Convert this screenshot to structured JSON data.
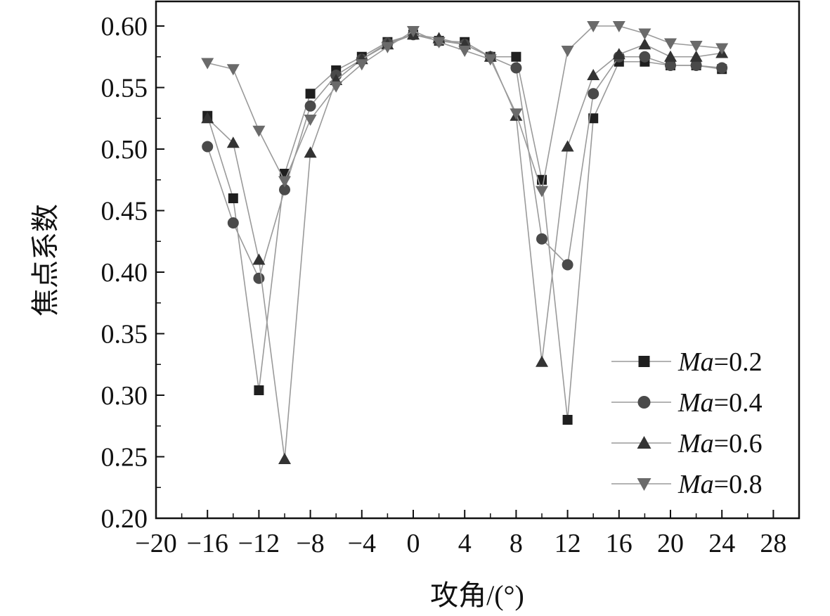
{
  "chart_data": {
    "type": "line",
    "title": "",
    "xlabel": "攻角/(°)",
    "ylabel": "焦点系数",
    "xlim": [
      -20,
      30
    ],
    "ylim": [
      0.2,
      0.62
    ],
    "xticks": [
      -20,
      -16,
      -12,
      -8,
      -4,
      0,
      4,
      8,
      12,
      16,
      20,
      24,
      28
    ],
    "xtick_labels": [
      "−20",
      "−16",
      "−12",
      "−8",
      "−4",
      "0",
      "4",
      "8",
      "12",
      "16",
      "20",
      "24",
      "28"
    ],
    "yticks": [
      0.2,
      0.25,
      0.3,
      0.35,
      0.4,
      0.45,
      0.5,
      0.55,
      0.6
    ],
    "ytick_labels": [
      "0.20",
      "0.25",
      "0.30",
      "0.35",
      "0.40",
      "0.45",
      "0.50",
      "0.55",
      "0.60"
    ],
    "grid": false,
    "legend_position": "bottom-right",
    "x": [
      -16,
      -14,
      -12,
      -10,
      -8,
      -6,
      -4,
      -2,
      0,
      2,
      4,
      6,
      8,
      10,
      12,
      14,
      16,
      18,
      20,
      22,
      24
    ],
    "series": [
      {
        "name": "Ma=0.2",
        "marker": "square",
        "color": "#1f1f1f",
        "values": [
          0.527,
          0.46,
          0.304,
          0.48,
          0.545,
          0.564,
          0.575,
          0.587,
          0.593,
          0.588,
          0.587,
          0.575,
          0.575,
          0.475,
          0.28,
          0.525,
          0.571,
          0.571,
          0.568,
          0.568,
          0.565
        ]
      },
      {
        "name": "Ma=0.4",
        "marker": "circle",
        "color": "#4a4a4a",
        "values": [
          0.502,
          0.44,
          0.395,
          0.467,
          0.535,
          0.56,
          0.573,
          0.586,
          0.593,
          0.588,
          0.585,
          0.575,
          0.566,
          0.427,
          0.406,
          0.545,
          0.575,
          0.575,
          0.568,
          0.568,
          0.566
        ]
      },
      {
        "name": "Ma=0.6",
        "marker": "triangle-up",
        "color": "#333333",
        "values": [
          0.525,
          0.505,
          0.41,
          0.248,
          0.497,
          0.556,
          0.573,
          0.585,
          0.593,
          0.59,
          0.585,
          0.575,
          0.527,
          0.327,
          0.502,
          0.56,
          0.577,
          0.585,
          0.575,
          0.575,
          0.578
        ]
      },
      {
        "name": "Ma=0.8",
        "marker": "triangle-down",
        "color": "#6a6a6a",
        "values": [
          0.57,
          0.565,
          0.515,
          0.474,
          0.524,
          0.551,
          0.569,
          0.583,
          0.596,
          0.587,
          0.58,
          0.573,
          0.529,
          0.466,
          0.58,
          0.6,
          0.6,
          0.594,
          0.586,
          0.584,
          0.582
        ]
      }
    ],
    "legend_entries": [
      {
        "prefix": "Ma",
        "suffix": "=0.2"
      },
      {
        "prefix": "Ma",
        "suffix": "=0.4"
      },
      {
        "prefix": "Ma",
        "suffix": "=0.6"
      },
      {
        "prefix": "Ma",
        "suffix": "=0.8"
      }
    ]
  }
}
